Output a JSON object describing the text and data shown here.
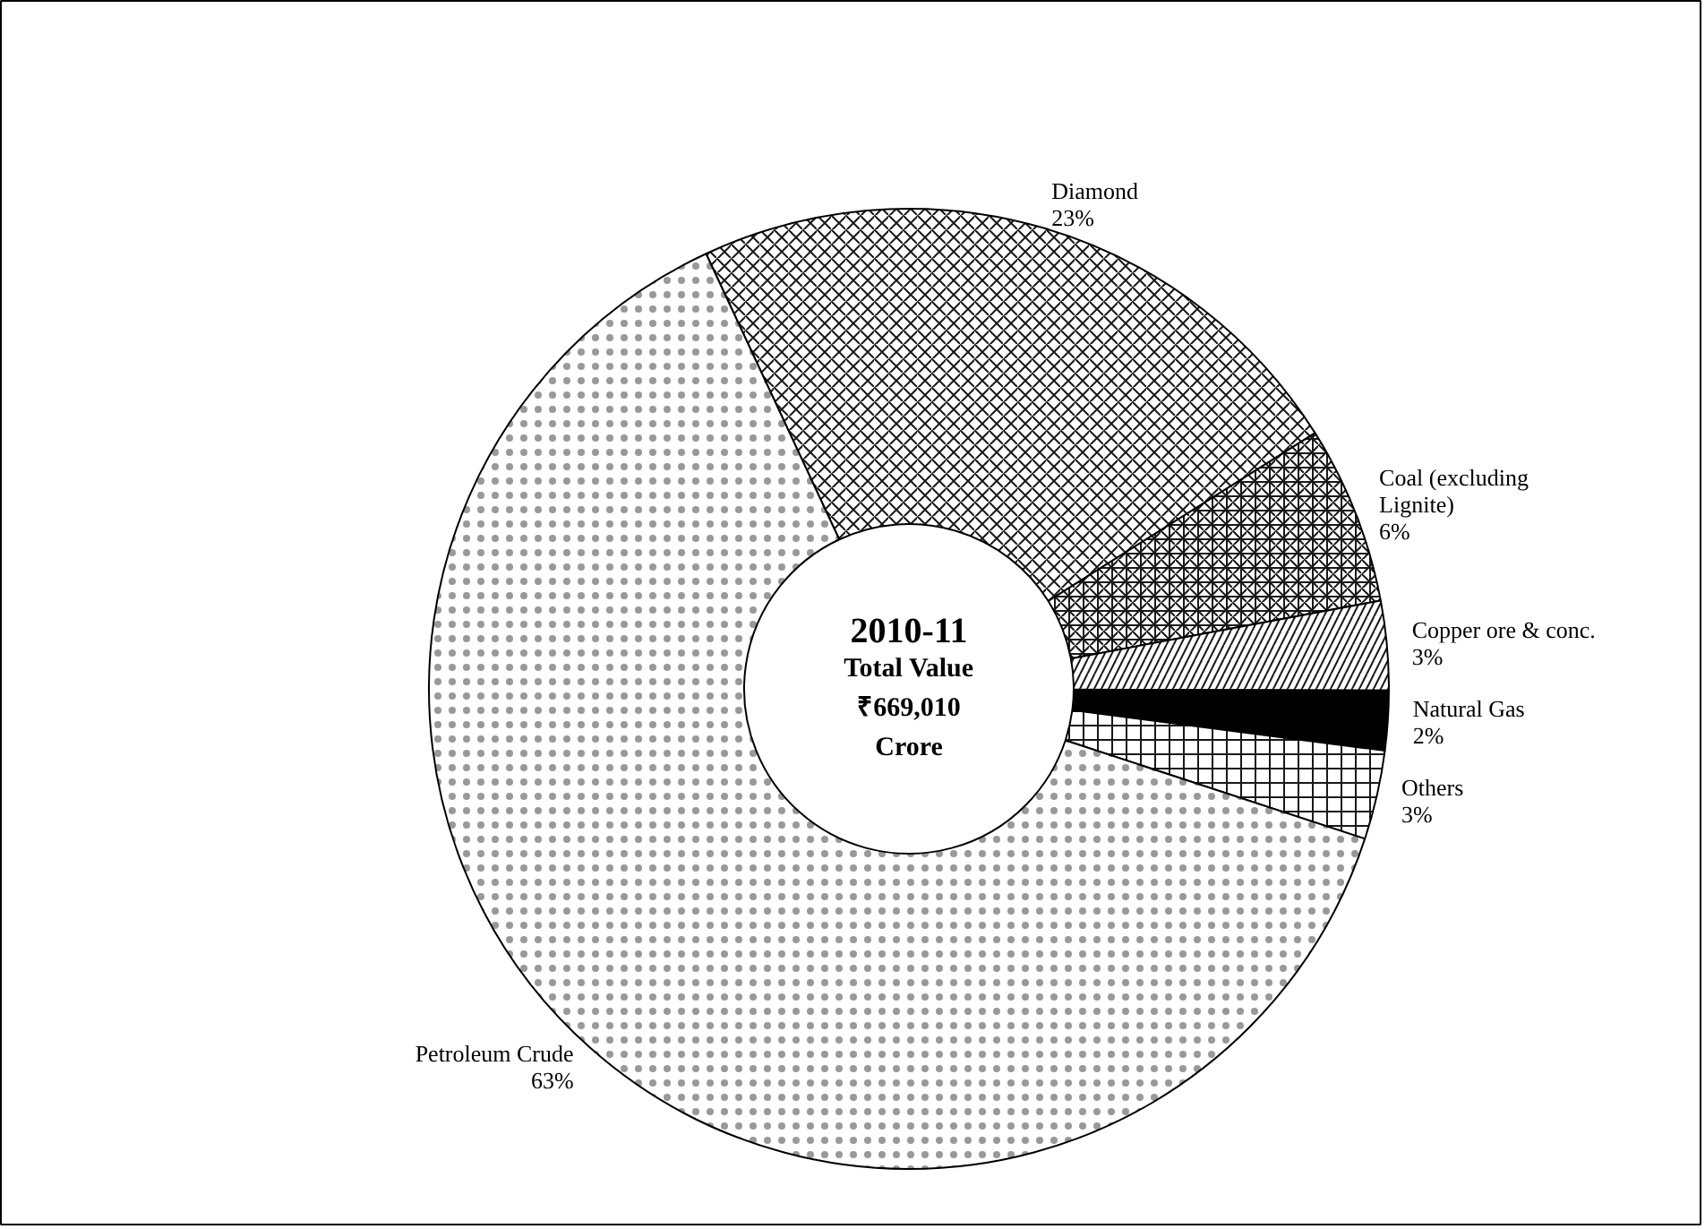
{
  "chart_data": {
    "type": "donut",
    "title": "2010-11",
    "annotations": [
      "Total Value",
      "₹669,010",
      "Crore"
    ],
    "categories": [
      "Diamond",
      "Coal (excluding Lignite)",
      "Copper ore & conc.",
      "Natural Gas",
      "Others",
      "Petroleum Crude"
    ],
    "values": [
      23,
      6,
      3,
      2,
      3,
      63
    ],
    "colors": [
      "#ffffff",
      "#ffffff",
      "#ffffff",
      "#000000",
      "#ffffff",
      "#ffffff"
    ],
    "value_labels": [
      "23%",
      "6%",
      "3%",
      "2%",
      "3%",
      "63%"
    ]
  }
}
